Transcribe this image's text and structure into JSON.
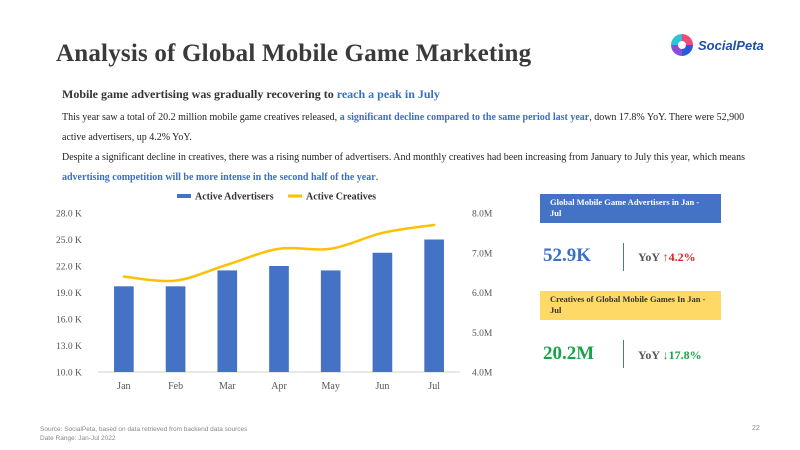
{
  "title": "Analysis of Global Mobile Game Marketing",
  "logo": {
    "text": "SocialPeta"
  },
  "subtitle": {
    "prefix": "Mobile game advertising was gradually recovering to ",
    "highlight": "reach a peak in July"
  },
  "paragraph1": {
    "part1": "This year saw a total of 20.2 million mobile game creatives released, ",
    "highlight": "a significant decline compared to the same period last year",
    "part2": ", down 17.8% YoY. There were 52,900 active advertisers, up 4.2% YoY."
  },
  "paragraph2": {
    "part1": "Despite a significant decline in creatives, there was a rising number of advertisers. And monthly creatives had been increasing from January to July this year, which means ",
    "highlight": "advertising competition will be more intense in the second half of the year",
    "part2": "."
  },
  "chart_data": {
    "type": "bar",
    "categories": [
      "Jan",
      "Feb",
      "Mar",
      "Apr",
      "May",
      "Jun",
      "Jul"
    ],
    "series": [
      {
        "name": "Active Advertisers",
        "type": "bar",
        "axis": "left",
        "color": "#4472c4",
        "values": [
          19.7,
          19.7,
          21.5,
          22.0,
          21.5,
          23.5,
          25.0
        ]
      },
      {
        "name": "Active Creatives",
        "type": "line",
        "axis": "right",
        "color": "#ffc000",
        "values": [
          6.4,
          6.3,
          6.7,
          7.1,
          7.1,
          7.5,
          7.7
        ]
      }
    ],
    "y_left": {
      "min": 10,
      "max": 28,
      "ticks": [
        10,
        13,
        16,
        19,
        22,
        25,
        28
      ],
      "tick_labels": [
        "10.0 K",
        "13.0 K",
        "16.0 K",
        "19.0 K",
        "22.0 K",
        "25.0 K",
        "28.0 K"
      ]
    },
    "y_right": {
      "min": 4,
      "max": 8,
      "ticks": [
        4,
        5,
        6,
        7,
        8
      ],
      "tick_labels": [
        "4.0M",
        "5.0M",
        "6.0M",
        "7.0M",
        "8.0M"
      ]
    },
    "legend_position": "top-center",
    "grid": false
  },
  "cards": {
    "advertisers": {
      "header": "Global Mobile Game Advertisers in Jan - Jul",
      "value": "52.9K",
      "yoy_label": "YoY ",
      "yoy_value": "↑4.2%",
      "header_color": "#4472c4",
      "value_color": "#3a6fc8"
    },
    "creatives": {
      "header": "Creatives of Global Mobile Games In Jan - Jul",
      "value": "20.2M",
      "yoy_label": "YoY ",
      "yoy_value": "↓17.8%",
      "header_color": "#ffd966",
      "value_color": "#1aa34a"
    }
  },
  "footer": {
    "source": "Source: SocialPeta, based on data retrieved from backend data sources",
    "date_range": "Date Range: Jan-Jul 2022"
  },
  "page_number": "22"
}
